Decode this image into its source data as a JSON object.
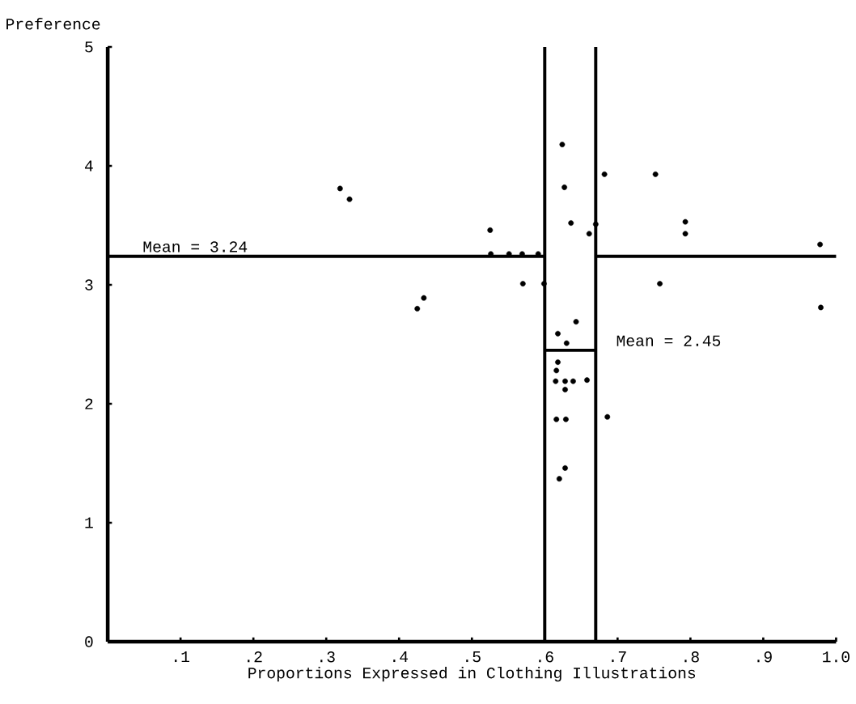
{
  "chart_data": {
    "type": "scatter",
    "xlabel": "Proportions Expressed in Clothing Illustrations",
    "ylabel": "Preference",
    "xlim": [
      0,
      1.0
    ],
    "ylim": [
      0,
      5
    ],
    "xticks": [
      {
        "value": 0.1,
        "label": ".1"
      },
      {
        "value": 0.2,
        "label": ".2"
      },
      {
        "value": 0.3,
        "label": ".3"
      },
      {
        "value": 0.4,
        "label": ".4"
      },
      {
        "value": 0.5,
        "label": ".5"
      },
      {
        "value": 0.6,
        "label": ".6"
      },
      {
        "value": 0.7,
        "label": ".7"
      },
      {
        "value": 0.8,
        "label": ".8"
      },
      {
        "value": 0.9,
        "label": ".9"
      },
      {
        "value": 1.0,
        "label": "1.0"
      }
    ],
    "yticks": [
      0,
      1,
      2,
      3,
      4,
      5
    ],
    "marker": "circle",
    "series": [
      {
        "color": "#000000",
        "x": [
          0.624,
          0.682,
          0.627,
          0.636,
          0.67,
          0.661,
          0.525,
          0.526,
          0.551,
          0.569,
          0.591,
          0.57,
          0.599,
          0.643,
          0.618,
          0.63,
          0.618,
          0.616,
          0.615,
          0.628,
          0.639,
          0.658,
          0.628,
          0.616,
          0.629,
          0.686,
          0.628,
          0.62,
          0.752,
          0.793,
          0.793,
          0.978,
          0.758,
          0.979,
          0.319,
          0.332,
          0.434,
          0.425
        ],
        "values": [
          4.18,
          3.93,
          3.82,
          3.52,
          3.51,
          3.43,
          3.46,
          3.26,
          3.26,
          3.26,
          3.26,
          3.01,
          3.01,
          2.69,
          2.59,
          2.51,
          2.35,
          2.28,
          2.19,
          2.19,
          2.19,
          2.2,
          2.12,
          1.87,
          1.87,
          1.89,
          1.46,
          1.37,
          3.93,
          3.53,
          3.43,
          3.34,
          3.01,
          2.81,
          3.81,
          3.72,
          2.89,
          2.8
        ]
      },
      {
        "type": "line",
        "color": "#000000",
        "marker": "none",
        "x": [
          0,
          0.6
        ],
        "values": [
          3.24,
          3.24
        ]
      },
      {
        "type": "line",
        "color": "#000000",
        "marker": "none",
        "x": [
          0.67,
          1.0
        ],
        "values": [
          3.24,
          3.24
        ]
      },
      {
        "type": "line",
        "color": "#000000",
        "marker": "none",
        "x": [
          0.6,
          0.67
        ],
        "values": [
          2.45,
          2.45
        ]
      }
    ],
    "ref_lines": [
      {
        "axis": "x",
        "value": 0.6,
        "color": "#000000"
      },
      {
        "axis": "x",
        "value": 0.67,
        "color": "#000000"
      }
    ],
    "annotations": [
      {
        "text": "Mean = 3.24",
        "x": 0.02,
        "y": 3.24
      },
      {
        "text": "Mean = 2.45",
        "x": 0.67,
        "y": 2.45
      }
    ]
  }
}
